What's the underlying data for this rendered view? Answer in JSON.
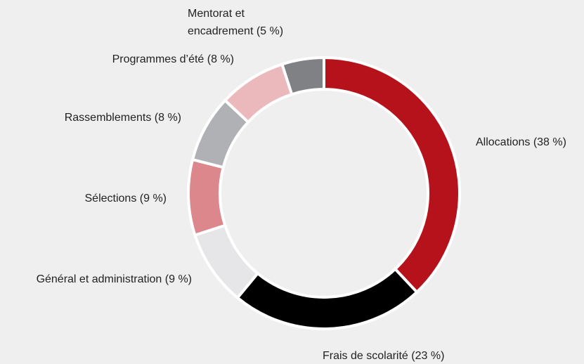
{
  "chart_data": {
    "type": "donut",
    "categories": [
      "Allocations (38 %)",
      "Frais de scolarité (23 %)",
      "Général et administration (9 %)",
      "Sélections (9 %)",
      "Rassemblements (8 %)",
      "Programmes d’été (8 %)",
      "Mentorat et\nencadrement (5 %)"
    ],
    "values": [
      38,
      23,
      9,
      9,
      8,
      8,
      5
    ],
    "colors": [
      "#b5121b",
      "#000000",
      "#e6e6e8",
      "#dc878c",
      "#b0b1b4",
      "#ebb9bc",
      "#808184"
    ]
  }
}
